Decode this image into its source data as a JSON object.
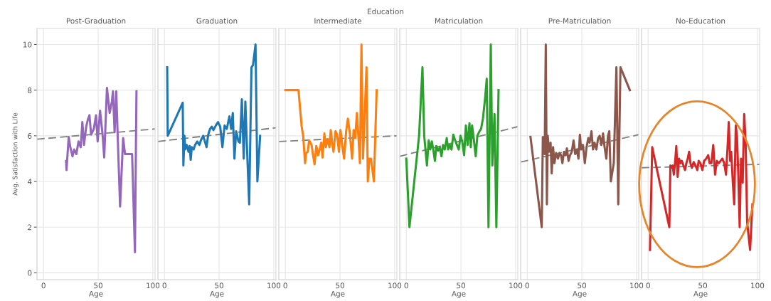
{
  "chart_data": [
    {
      "type": "line",
      "title": "Post-Graduation",
      "xlabel": "Age",
      "ylabel": "Avg. Satisfaction with Life",
      "annotations": [
        "Education"
      ],
      "xlim": [
        -6,
        102
      ],
      "xticks": [
        0,
        50,
        100
      ],
      "ylim": [
        -0.3,
        10.7
      ],
      "yticks": [
        0,
        2,
        4,
        6,
        8,
        10
      ],
      "grid": true,
      "line_style": "solid",
      "series": [
        {
          "color": "#9467bd",
          "x": [
            20.6,
            21,
            23,
            24.5,
            26.5,
            28,
            30,
            32,
            34,
            35.5,
            37,
            39,
            40.5,
            42,
            43.5,
            46,
            48,
            49.5,
            51.7,
            54,
            55.5,
            58,
            60.5,
            62.5,
            63.5,
            65,
            66.5,
            68,
            70,
            72.8,
            74.5,
            81,
            83.6,
            85
          ],
          "values": [
            4.9,
            4.5,
            5.95,
            5.5,
            5.1,
            5.4,
            5.2,
            5.75,
            5.5,
            6.6,
            5.6,
            6.4,
            6.7,
            6.9,
            6.05,
            6.3,
            6.9,
            5.75,
            7.1,
            6.05,
            5.05,
            8.1,
            7.0,
            7.5,
            7.95,
            6.15,
            7.95,
            5.75,
            2.9,
            5.9,
            5.2,
            5.2,
            0.9,
            7.95
          ]
        },
        {
          "type": "line",
          "color": "#808080",
          "line_style": "dashed",
          "x": [
            -6,
            102
          ],
          "values": [
            5.85,
            6.3
          ]
        }
      ]
    },
    {
      "type": "line",
      "title": "Graduation",
      "xlabel": "Age",
      "xlim": [
        -6,
        102
      ],
      "xticks": [
        0,
        50,
        100
      ],
      "ylim": [
        -0.3,
        10.7
      ],
      "yticks": [
        0,
        2,
        4,
        6,
        8,
        10
      ],
      "grid": true,
      "tick_labels": "x",
      "line_style": "solid",
      "series": [
        {
          "color": "#1f77b4",
          "x": [
            2.5,
            3,
            16.7,
            17.3,
            18.3,
            19,
            20.4,
            22,
            23,
            24,
            25,
            26.7,
            28,
            30,
            32,
            33.3,
            35.4,
            37,
            38.5,
            40,
            41.7,
            43.3,
            44.8,
            47,
            49,
            51,
            53,
            55,
            57,
            59.4,
            61,
            62.5,
            64,
            65.6,
            67.7,
            69,
            70.8,
            72.5,
            74,
            75.4,
            77.5,
            79.6,
            81,
            83.3,
            85,
            87.5
          ],
          "values": [
            9.0,
            6.0,
            7.45,
            4.7,
            6.0,
            5.4,
            5.6,
            5.3,
            5.55,
            4.95,
            5.5,
            5.4,
            5.6,
            5.75,
            5.6,
            5.8,
            6.0,
            5.75,
            5.5,
            6.05,
            6.3,
            6.4,
            6.25,
            6.45,
            6.6,
            6.4,
            5.5,
            6.45,
            6.3,
            6.85,
            6.3,
            7.0,
            5.0,
            6.2,
            5.75,
            5.7,
            7.6,
            5.0,
            7.5,
            5.6,
            3.0,
            9.0,
            9.1,
            10.0,
            4.0,
            6.0
          ]
        },
        {
          "type": "line",
          "color": "#808080",
          "line_style": "dashed",
          "x": [
            -6,
            102
          ],
          "values": [
            5.75,
            6.35
          ]
        }
      ]
    },
    {
      "type": "line",
      "title": "Intermediate",
      "xlabel": "Age",
      "xlim": [
        -6,
        102
      ],
      "xticks": [
        0,
        50,
        100
      ],
      "ylim": [
        -0.3,
        10.7
      ],
      "yticks": [
        0,
        2,
        4,
        6,
        8,
        10
      ],
      "grid": true,
      "tick_labels": "x",
      "line_style": "solid",
      "series": [
        {
          "color": "#ff7f0e",
          "x": [
            0,
            12,
            14.9,
            16.3,
            18,
            19,
            20.5,
            21.7,
            23,
            24,
            25,
            26.7,
            28.3,
            30,
            31.4,
            32.8,
            34,
            35.7,
            37,
            38.6,
            40.3,
            41.5,
            42.8,
            44,
            45.9,
            47.3,
            49,
            50.4,
            52.3,
            53.7,
            55.6,
            57.2,
            59,
            61,
            62.4,
            63.8,
            65.5,
            66.9,
            68.2,
            69.6,
            71,
            72.3,
            74.2,
            75.4,
            76.9,
            78.3,
            81,
            83.5
          ],
          "values": [
            8.0,
            8.0,
            6.4,
            6.0,
            4.8,
            5.25,
            5.3,
            5.8,
            5.7,
            5.6,
            5.25,
            4.75,
            5.55,
            5.15,
            5.4,
            5.7,
            5.05,
            6.1,
            5.5,
            5.85,
            5.5,
            6.25,
            5.7,
            5.3,
            6.2,
            6.05,
            5.3,
            6.25,
            5.5,
            5.0,
            6.2,
            6.75,
            6.1,
            5.0,
            6.25,
            5.9,
            7.0,
            5.9,
            4.8,
            10.0,
            5.0,
            6.55,
            9.0,
            4.0,
            5.0,
            5.0,
            4.0,
            8.0
          ]
        },
        {
          "type": "line",
          "color": "#808080",
          "line_style": "dashed",
          "x": [
            -6,
            102
          ],
          "values": [
            5.75,
            6.0
          ]
        }
      ]
    },
    {
      "type": "line",
      "title": "Matriculation",
      "xlabel": "Age",
      "xlim": [
        -6,
        102
      ],
      "xticks": [
        0,
        50,
        100
      ],
      "ylim": [
        -0.3,
        10.7
      ],
      "yticks": [
        0,
        2,
        4,
        6,
        8,
        10
      ],
      "grid": true,
      "tick_labels": "x",
      "line_style": "solid",
      "series": [
        {
          "color": "#2ca02c",
          "x": [
            0,
            2.9,
            11.7,
            14.8,
            16.4,
            18.9,
            20.5,
            21.9,
            23.4,
            25,
            26.2,
            27.5,
            29.1,
            30.7,
            32.2,
            33.6,
            35.2,
            37,
            38.3,
            39.8,
            41.4,
            43,
            44.7,
            46.3,
            48,
            49.6,
            51.2,
            52.9,
            54.5,
            56.1,
            57.8,
            59,
            60.2,
            61.9,
            63.5,
            65,
            67,
            68.4,
            70.1,
            72.1,
            73.6,
            75.2,
            77.3,
            78.7,
            80.7,
            82.4,
            84.4
          ],
          "values": [
            5.0,
            2.0,
            6.0,
            9.0,
            6.0,
            4.7,
            5.8,
            5.4,
            5.75,
            5.3,
            4.9,
            5.55,
            5.35,
            5.5,
            5.1,
            5.6,
            5.4,
            5.9,
            5.4,
            5.6,
            5.4,
            6.05,
            5.8,
            5.6,
            5.4,
            6.0,
            5.75,
            5.15,
            6.45,
            5.6,
            6.55,
            5.5,
            6.45,
            5.8,
            5.1,
            6.0,
            6.2,
            6.3,
            6.75,
            7.65,
            8.5,
            2.0,
            10.0,
            4.7,
            6.95,
            2.0,
            8.0
          ]
        },
        {
          "type": "line",
          "color": "#808080",
          "line_style": "dashed",
          "x": [
            -6,
            102
          ],
          "values": [
            5.1,
            6.4
          ]
        }
      ]
    },
    {
      "type": "line",
      "title": "Pre-Matriculation",
      "xlabel": "Age",
      "xlim": [
        -6,
        102
      ],
      "xticks": [
        0,
        50,
        100
      ],
      "ylim": [
        -0.3,
        10.7
      ],
      "yticks": [
        0,
        2,
        4,
        6,
        8,
        10
      ],
      "grid": true,
      "tick_labels": "x",
      "line_style": "solid",
      "series": [
        {
          "color": "#8c564b",
          "x": [
            3,
            13.3,
            14.3,
            16,
            17,
            18,
            18.8,
            20,
            21.4,
            22.4,
            23.7,
            24.9,
            26.5,
            28.2,
            29.6,
            31,
            32.2,
            33.7,
            35.1,
            36.3,
            37.8,
            39.2,
            40.8,
            42.4,
            43.9,
            45.3,
            46.9,
            48.2,
            49.4,
            51,
            52.7,
            54.3,
            55.9,
            57.1,
            58.8,
            60.2,
            61.6,
            63.3,
            64.9,
            66.3,
            67.8,
            69.4,
            70.8,
            72.4,
            73.9,
            75.1,
            76.5,
            79.2,
            81.6,
            83.3,
            85.3,
            93.9
          ],
          "values": [
            5.95,
            2.0,
            5.95,
            5.2,
            10.0,
            3.0,
            6.0,
            5.3,
            5.7,
            4.35,
            5.5,
            4.8,
            5.25,
            5.0,
            5.25,
            5.15,
            4.8,
            5.3,
            5.15,
            5.45,
            4.9,
            5.15,
            5.3,
            5.8,
            5.2,
            5.4,
            5.0,
            6.05,
            5.4,
            5.6,
            4.8,
            5.5,
            5.9,
            5.7,
            6.2,
            5.4,
            5.7,
            5.4,
            5.9,
            6.0,
            5.6,
            6.1,
            5.5,
            5.0,
            6.0,
            6.2,
            4.0,
            4.8,
            9.0,
            3.0,
            9.0,
            8.0
          ]
        },
        {
          "type": "line",
          "color": "#808080",
          "line_style": "dashed",
          "x": [
            -6,
            102
          ],
          "values": [
            4.85,
            6.05
          ]
        }
      ]
    },
    {
      "type": "line",
      "title": "No-Education",
      "xlabel": "Age",
      "xlim": [
        -6,
        102
      ],
      "xticks": [
        0,
        50,
        100
      ],
      "ylim": [
        -0.3,
        10.7
      ],
      "yticks": [
        0,
        2,
        4,
        6,
        8,
        10
      ],
      "grid": true,
      "tick_labels": "x",
      "line_style": "solid",
      "series": [
        {
          "color": "#d62728",
          "x": [
            1.7,
            3.75,
            4.6,
            19.4,
            20.4,
            21.3,
            22.5,
            23.5,
            24.6,
            25.8,
            27,
            28.3,
            29.6,
            30.8,
            32.3,
            33.75,
            35,
            36.25,
            37.5,
            38.75,
            40,
            41.7,
            43.3,
            45,
            46.25,
            47.9,
            49.6,
            51.25,
            53.1,
            55,
            56.25,
            57.9,
            59.6,
            61.25,
            62.9,
            64.6,
            66.25,
            67.9,
            69.6,
            71.25,
            72.9,
            73.75,
            75,
            76,
            77.5,
            78.75,
            80.2,
            81.25,
            82.5,
            83.75,
            85,
            86.5,
            87.9,
            89.2,
            90.6,
            93.3,
            95.4
          ],
          "values": [
            1.0,
            5.5,
            5.3,
            2.0,
            4.7,
            4.6,
            4.7,
            4.3,
            4.8,
            5.55,
            4.2,
            5.0,
            4.8,
            4.9,
            4.7,
            4.5,
            4.8,
            5.0,
            5.3,
            4.8,
            4.6,
            4.85,
            4.7,
            4.5,
            4.9,
            4.8,
            4.5,
            4.9,
            5.0,
            5.15,
            4.8,
            4.8,
            5.6,
            4.3,
            4.9,
            4.8,
            4.9,
            5.0,
            4.8,
            4.3,
            5.7,
            6.6,
            4.9,
            5.3,
            3.95,
            3.0,
            6.45,
            6.0,
            4.3,
            2.0,
            5.0,
            3.95,
            6.95,
            5.7,
            2.2,
            1.0,
            3.0
          ]
        },
        {
          "type": "line",
          "color": "#808080",
          "line_style": "dashed",
          "x": [
            -6,
            102
          ],
          "values": [
            4.6,
            4.75
          ]
        }
      ]
    }
  ]
}
